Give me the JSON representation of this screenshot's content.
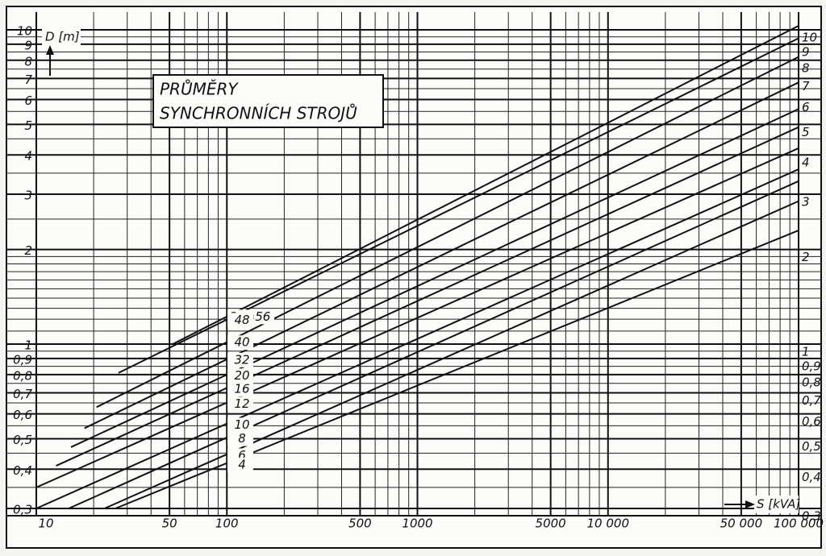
{
  "chart_data": {
    "type": "line",
    "title": "PRŮMĚRY",
    "subtitle": "SYNCHRONNÍCH STROJŮ",
    "y_label": "D [m]",
    "x_label": "S [kVA]",
    "x_log": true,
    "y_log": true,
    "grid": true,
    "color": "#111111",
    "xlim": [
      10,
      100000
    ],
    "ylim": [
      0.3,
      10
    ],
    "xticks": [
      10,
      50,
      100,
      500,
      1000,
      5000,
      {
        "value": 10000,
        "label": "10 000"
      },
      {
        "value": 50000,
        "label": "50 000"
      },
      {
        "value": 100000,
        "label": "100 000"
      }
    ],
    "x_minor_ticks": [
      20,
      30,
      40,
      60,
      70,
      80,
      90,
      200,
      300,
      400,
      600,
      700,
      800,
      900,
      2000,
      3000,
      4000,
      6000,
      7000,
      8000,
      9000,
      20000,
      30000,
      40000,
      60000,
      70000,
      80000,
      90000
    ],
    "yticks": [
      10,
      9,
      8,
      7,
      6,
      5,
      4,
      3,
      2,
      1,
      {
        "value": 0.9,
        "label": "0,9"
      },
      {
        "value": 0.8,
        "label": "0,8"
      },
      {
        "value": 0.7,
        "label": "0,7"
      },
      {
        "value": 0.6,
        "label": "0,6"
      },
      {
        "value": 0.5,
        "label": "0,5"
      },
      {
        "value": 0.4,
        "label": "0,4"
      },
      {
        "value": 0.3,
        "label": "0,3"
      }
    ],
    "y_minor_ticks": [
      0.35,
      0.45,
      0.55,
      0.65,
      0.75,
      0.85,
      0.95,
      1.1,
      1.2,
      1.3,
      1.4,
      1.5,
      1.6,
      1.7,
      1.8,
      1.9,
      2.5,
      3.5,
      4.5,
      5.5,
      6.5,
      7.5,
      8.5,
      9.5
    ],
    "series": [
      {
        "name": "2p=56",
        "x": [
          52,
          100000
        ],
        "values": [
          1.0,
          10.3
        ]
      },
      {
        "name": "48",
        "x": [
          27,
          100000
        ],
        "values": [
          0.81,
          9.4
        ]
      },
      {
        "name": "40",
        "x": [
          20.7,
          100000
        ],
        "values": [
          0.63,
          8.2
        ]
      },
      {
        "name": "32",
        "x": [
          17.9,
          100000
        ],
        "values": [
          0.54,
          6.8
        ]
      },
      {
        "name": "20",
        "x": [
          15.2,
          100000
        ],
        "values": [
          0.47,
          5.6
        ]
      },
      {
        "name": "16",
        "x": [
          12.7,
          100000
        ],
        "values": [
          0.41,
          4.9
        ]
      },
      {
        "name": "12",
        "x": [
          10,
          100000
        ],
        "values": [
          0.35,
          4.2
        ]
      },
      {
        "name": "10",
        "x": [
          10,
          100000
        ],
        "values": [
          0.3,
          3.6
        ]
      },
      {
        "name": "8",
        "x": [
          14.8,
          100000
        ],
        "values": [
          0.3,
          3.3
        ]
      },
      {
        "name": "6",
        "x": [
          22.8,
          100000
        ],
        "values": [
          0.3,
          2.85
        ]
      },
      {
        "name": "4",
        "x": [
          26,
          100000
        ],
        "values": [
          0.3,
          2.3
        ]
      }
    ]
  }
}
